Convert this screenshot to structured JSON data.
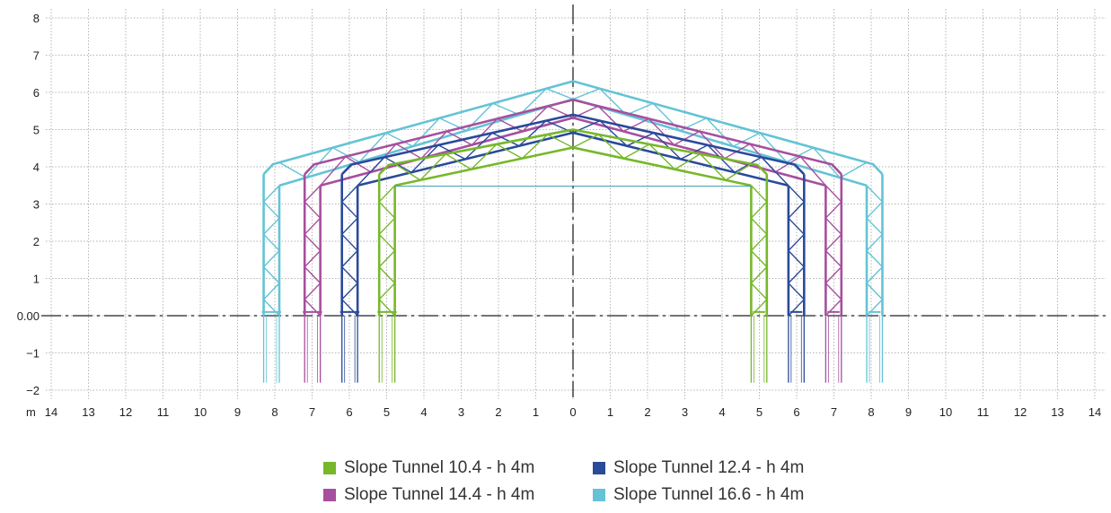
{
  "axis": {
    "unit_label": "m",
    "x_ticks": [
      "14",
      "13",
      "12",
      "11",
      "10",
      "9",
      "8",
      "7",
      "6",
      "5",
      "4",
      "3",
      "2",
      "1",
      "0",
      "1",
      "2",
      "3",
      "4",
      "5",
      "6",
      "7",
      "8",
      "9",
      "10",
      "11",
      "12",
      "13",
      "14"
    ],
    "y_ticks": [
      "8",
      "7",
      "6",
      "5",
      "4",
      "3",
      "2",
      "1",
      "0.00",
      "−1",
      "−2"
    ],
    "x_range": [
      -14,
      14
    ],
    "y_range": [
      -2,
      8
    ]
  },
  "tunnels": [
    {
      "name": "Slope Tunnel 10.4 - h 4m",
      "span": 10.4,
      "eave_height": 4.0,
      "ridge_height": 5.0,
      "color": "#76b82a"
    },
    {
      "name": "Slope Tunnel 12.4 - h 4m",
      "span": 12.4,
      "eave_height": 4.0,
      "ridge_height": 5.4,
      "color": "#2a4a9a"
    },
    {
      "name": "Slope Tunnel 14.4 - h 4m",
      "span": 14.4,
      "eave_height": 4.0,
      "ridge_height": 5.8,
      "color": "#a64f9e"
    },
    {
      "name": "Slope Tunnel 16.6 - h 4m",
      "span": 16.6,
      "eave_height": 4.0,
      "ridge_height": 6.3,
      "color": "#64c3d6"
    }
  ],
  "legend_order": [
    0,
    1,
    2,
    3
  ]
}
